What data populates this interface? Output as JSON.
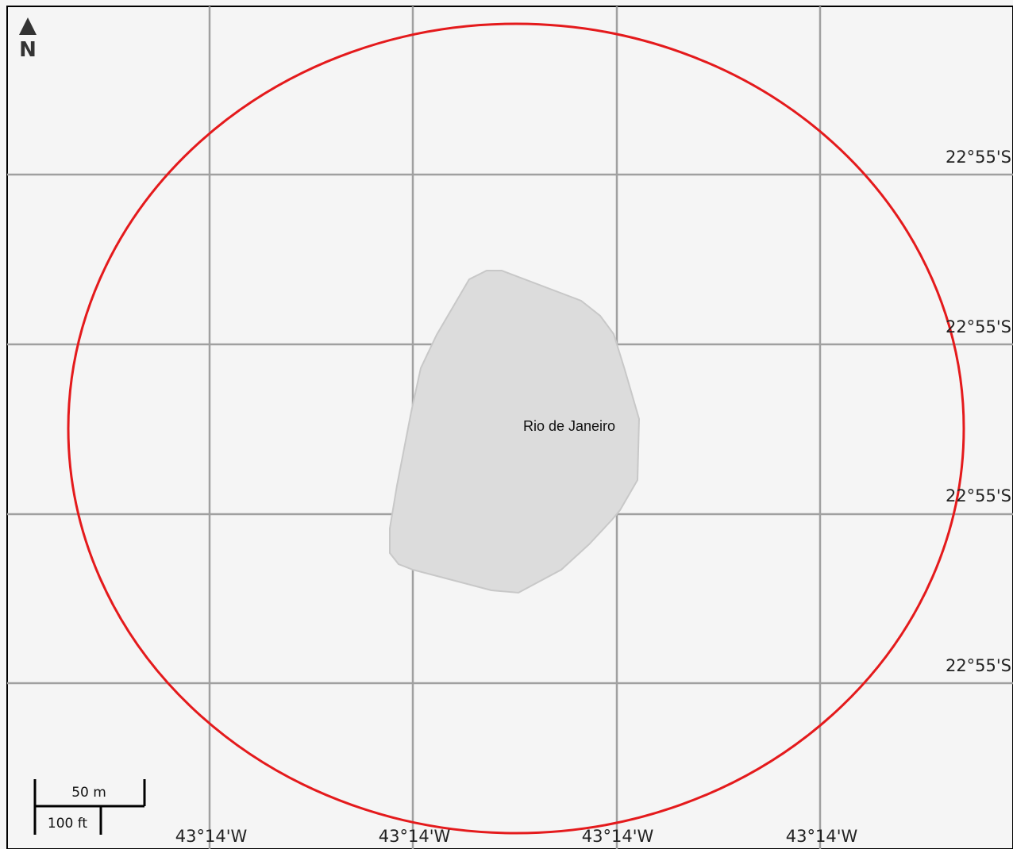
{
  "map": {
    "north_arrow": {
      "icon": "north-arrow-icon",
      "label": "N"
    },
    "lat_labels": [
      "22°55'S",
      "22°55'S",
      "22°55'S",
      "22°55'S"
    ],
    "lon_labels": [
      "43°14'W",
      "43°14'W",
      "43°14'W",
      "43°14'W"
    ],
    "place_label": "Rio de Janeiro",
    "scale_bar": {
      "metric_label": "50 m",
      "imperial_label": "100 ft"
    },
    "colors": {
      "background": "#f5f5f5",
      "grid": "#9e9e9e",
      "radius_circle": "#e41a1c",
      "area_fill": "#dcdcdc",
      "area_stroke": "#c8c8c8"
    }
  }
}
